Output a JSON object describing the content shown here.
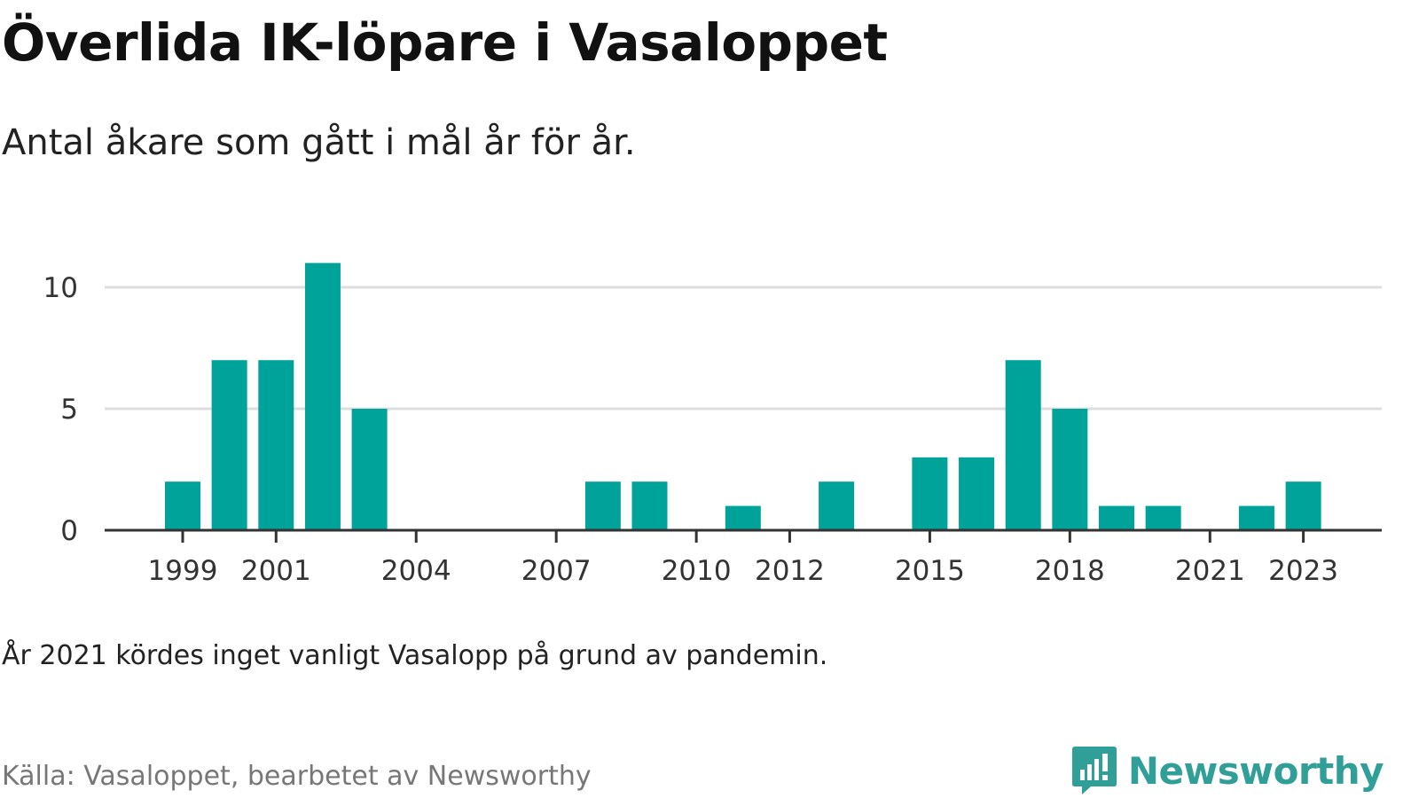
{
  "header": {
    "title": "Överlida IK-löpare i Vasaloppet",
    "subtitle": "Antal åkare som gått i mål år för år."
  },
  "footer": {
    "note": "År 2021 kördes inget vanligt Vasalopp på grund av pandemin.",
    "source": "Källa: Vasaloppet, bearbetet av Newsworthy",
    "brand": "Newsworthy"
  },
  "colors": {
    "bar": "#00a39a",
    "grid": "#dddddd",
    "axis": "#333333",
    "brand": "#2f9f97"
  },
  "chart_data": {
    "type": "bar",
    "categories": [
      1999,
      2000,
      2001,
      2002,
      2003,
      2004,
      2005,
      2006,
      2007,
      2008,
      2009,
      2010,
      2011,
      2012,
      2013,
      2014,
      2015,
      2016,
      2017,
      2018,
      2019,
      2020,
      2021,
      2022,
      2023
    ],
    "values": [
      2,
      7,
      7,
      11,
      5,
      0,
      0,
      0,
      0,
      2,
      2,
      0,
      1,
      0,
      2,
      0,
      3,
      3,
      7,
      5,
      1,
      1,
      0,
      1,
      2
    ],
    "x_tick_labels": [
      "1999",
      "2001",
      "2004",
      "2007",
      "2010",
      "2012",
      "2015",
      "2018",
      "2021",
      "2023"
    ],
    "y_ticks": [
      0,
      5,
      10
    ],
    "ylim": [
      0,
      11
    ],
    "grid": true,
    "legend": "none"
  }
}
